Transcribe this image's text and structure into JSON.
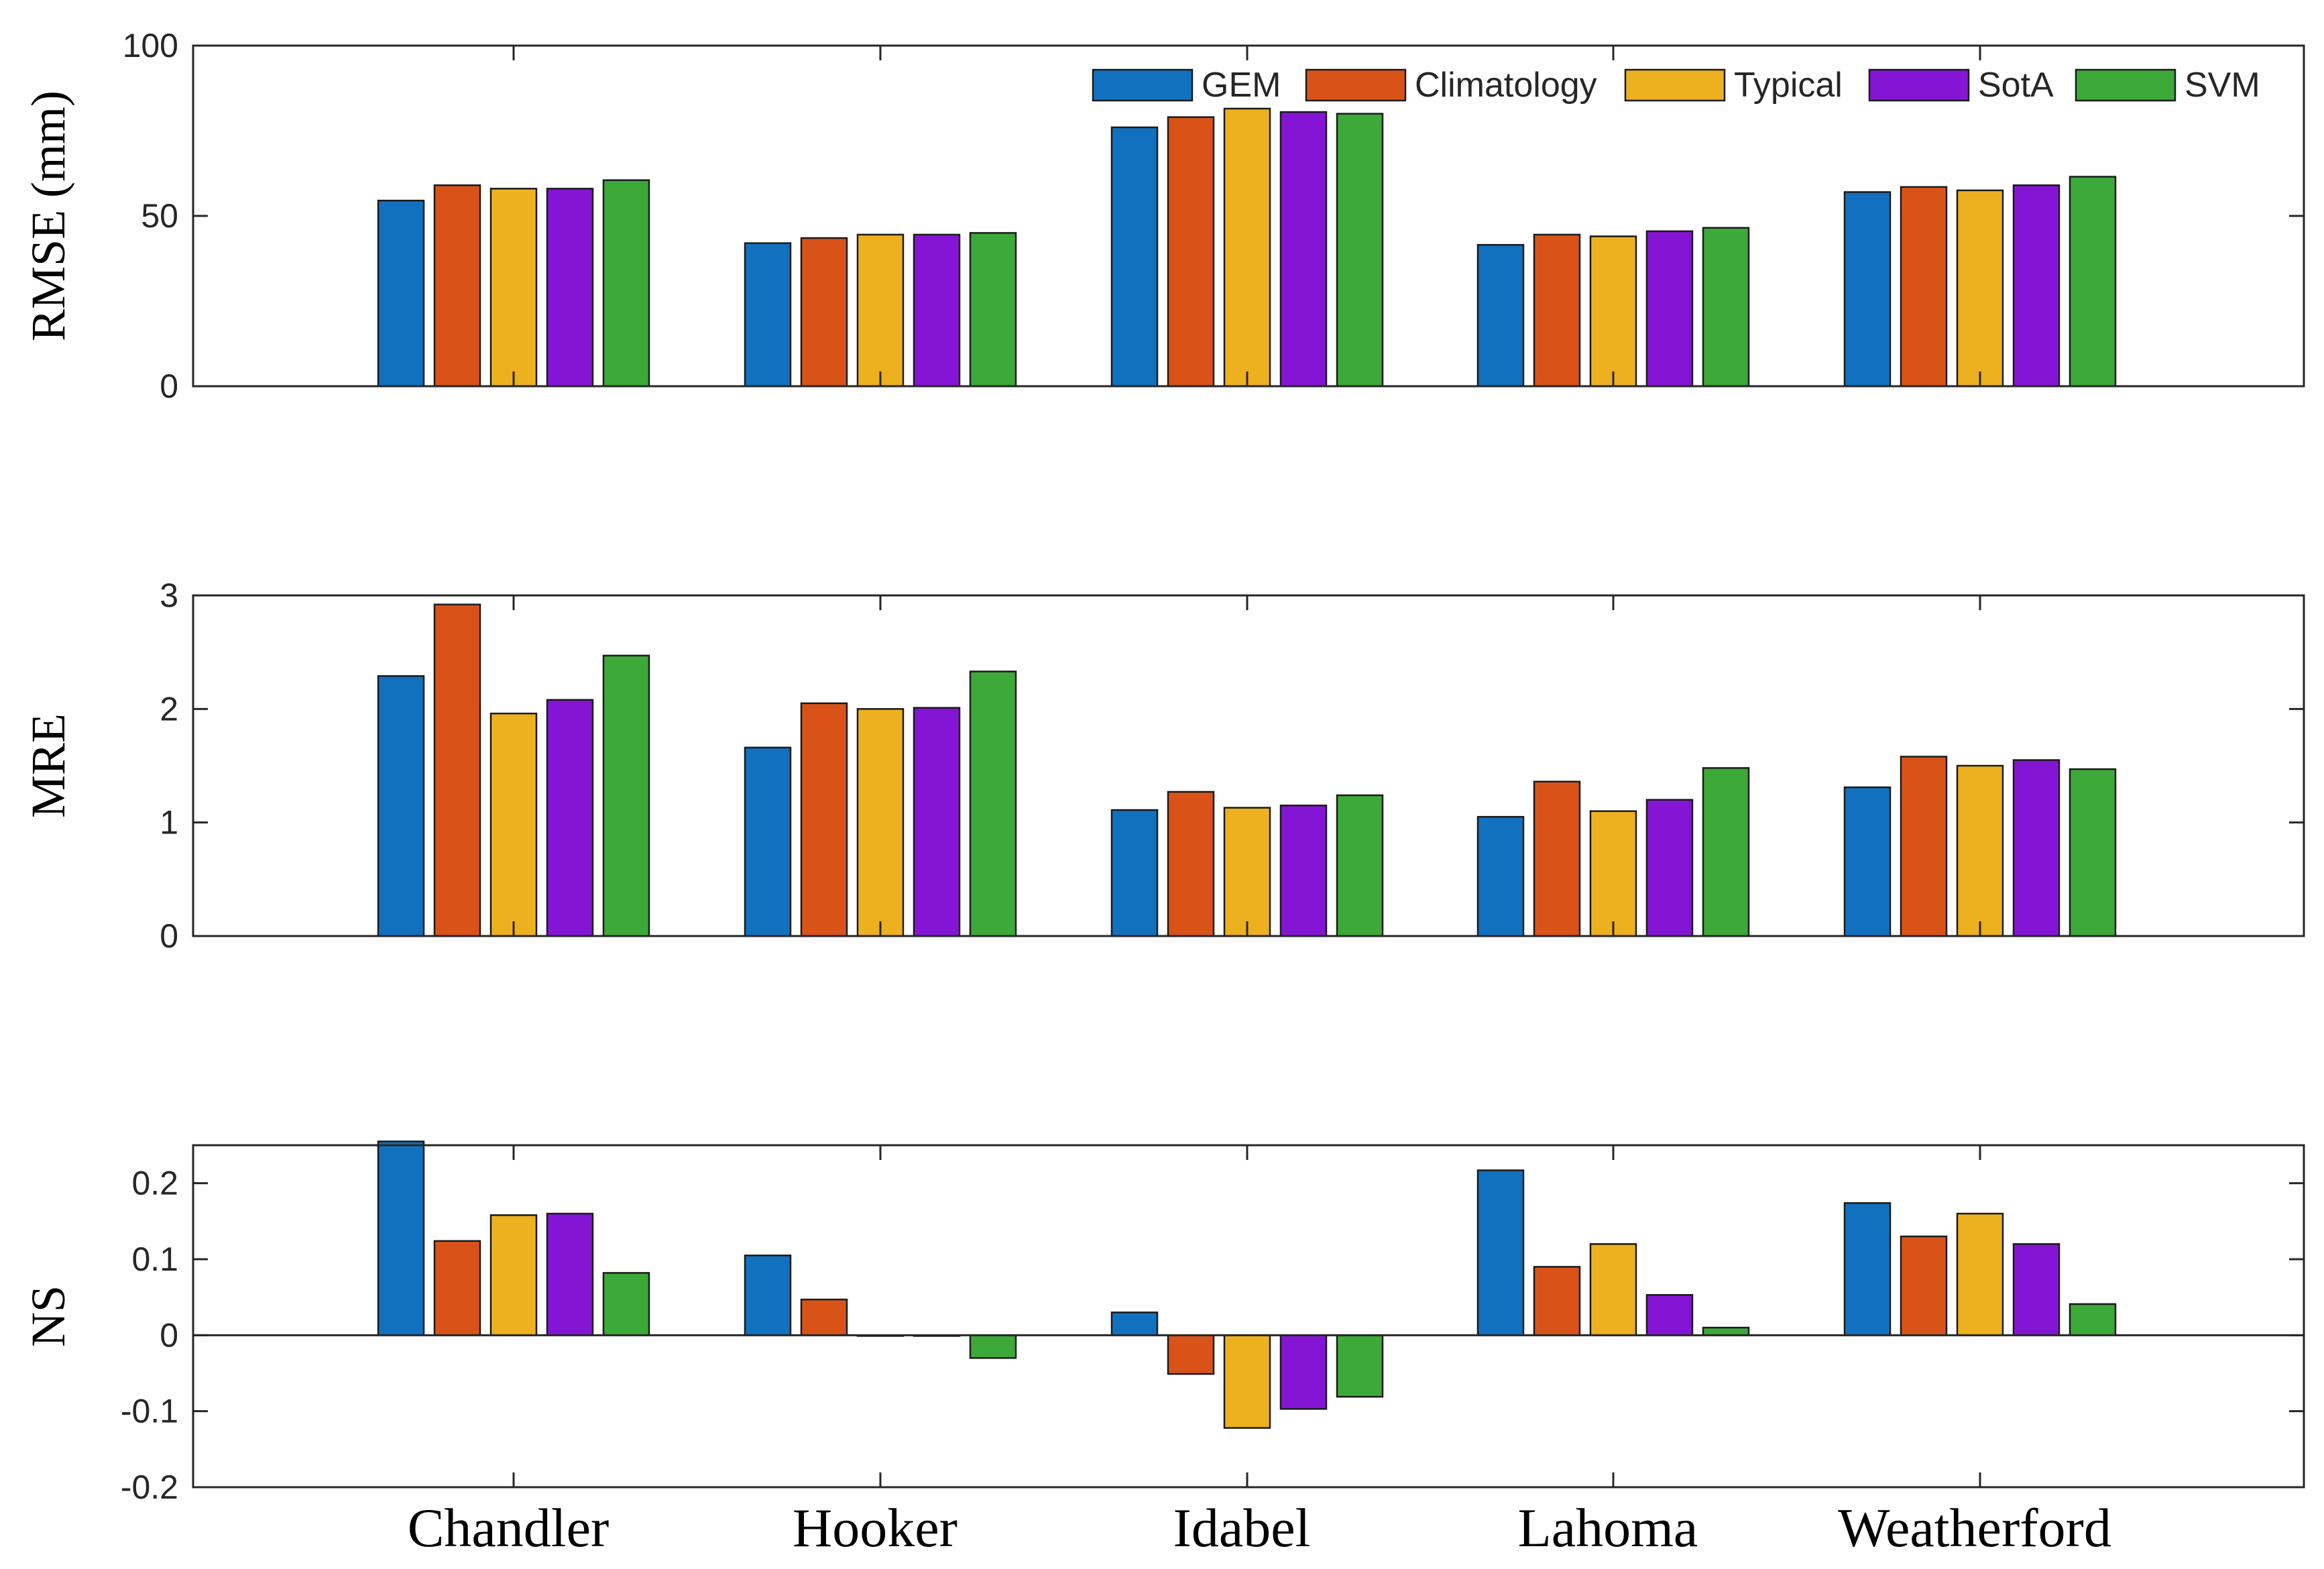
{
  "chart_data": [
    {
      "type": "bar",
      "ylabel": "RMSE (mm)",
      "xlabel": "",
      "ylim": [
        0,
        100
      ],
      "yticks": [
        0,
        50,
        100
      ],
      "categories": [
        "Chandler",
        "Hooker",
        "Idabel",
        "Lahoma",
        "Weatherford"
      ],
      "series": [
        {
          "name": "GEM",
          "values": [
            54.5,
            42,
            76,
            41.5,
            57
          ]
        },
        {
          "name": "Climatology",
          "values": [
            59,
            43.5,
            79,
            44.5,
            58.5
          ]
        },
        {
          "name": "Typical",
          "values": [
            58,
            44.5,
            81.5,
            44,
            57.5
          ]
        },
        {
          "name": "SotA",
          "values": [
            58,
            44.5,
            80.5,
            45.5,
            59
          ]
        },
        {
          "name": "SVM",
          "values": [
            60.5,
            45,
            80,
            46.5,
            61.5
          ]
        }
      ],
      "legend": "top-right"
    },
    {
      "type": "bar",
      "ylabel": "MRE",
      "xlabel": "",
      "ylim": [
        0,
        3
      ],
      "yticks": [
        0,
        1,
        2,
        3
      ],
      "categories": [
        "Chandler",
        "Hooker",
        "Idabel",
        "Lahoma",
        "Weatherford"
      ],
      "series": [
        {
          "name": "GEM",
          "values": [
            2.29,
            1.66,
            1.11,
            1.05,
            1.31
          ]
        },
        {
          "name": "Climatology",
          "values": [
            2.92,
            2.05,
            1.27,
            1.36,
            1.58
          ]
        },
        {
          "name": "Typical",
          "values": [
            1.96,
            2.0,
            1.13,
            1.1,
            1.5
          ]
        },
        {
          "name": "SotA",
          "values": [
            2.08,
            2.01,
            1.15,
            1.2,
            1.55
          ]
        },
        {
          "name": "SVM",
          "values": [
            2.47,
            2.33,
            1.24,
            1.48,
            1.47
          ]
        }
      ]
    },
    {
      "type": "bar",
      "ylabel": "NS",
      "xlabel": "",
      "ylim": [
        -0.2,
        0.25
      ],
      "yticks": [
        -0.2,
        -0.1,
        0,
        0.1,
        0.2
      ],
      "ytick_labels": [
        "-0.2",
        "-0.1",
        "0",
        "0.1",
        "0.2"
      ],
      "categories": [
        "Chandler",
        "Hooker",
        "Idabel",
        "Lahoma",
        "Weatherford"
      ],
      "series": [
        {
          "name": "GEM",
          "values": [
            0.255,
            0.105,
            0.03,
            0.217,
            0.174
          ]
        },
        {
          "name": "Climatology",
          "values": [
            0.124,
            0.047,
            -0.051,
            0.09,
            0.13
          ]
        },
        {
          "name": "Typical",
          "values": [
            0.158,
            -0.001,
            -0.122,
            0.12,
            0.16
          ]
        },
        {
          "name": "SotA",
          "values": [
            0.16,
            -0.001,
            -0.097,
            0.053,
            0.12
          ]
        },
        {
          "name": "SVM",
          "values": [
            0.082,
            -0.03,
            -0.081,
            0.01,
            0.041
          ]
        }
      ]
    }
  ],
  "colors": {
    "GEM": "#1271bf",
    "Climatology": "#d95319",
    "Typical": "#edb120",
    "SotA": "#8515d4",
    "SVM": "#3ca938"
  },
  "legend_labels": [
    "GEM",
    "Climatology",
    "Typical",
    "SotA",
    "SVM"
  ]
}
